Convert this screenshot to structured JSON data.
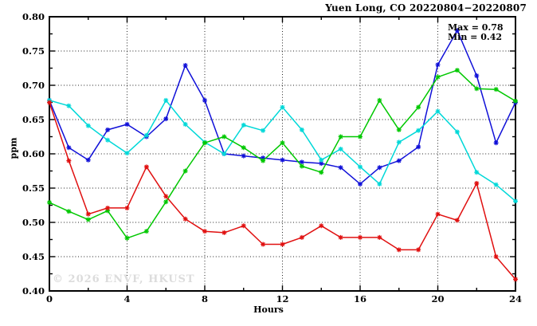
{
  "title": "Yuen Long, CO 20220804−20220807",
  "annotation": {
    "max_label": "Max = 0.78",
    "min_label": "Min = 0.42"
  },
  "watermark": "© 2026 ENVF, HKUST",
  "axis": {
    "xlabel": "Hours",
    "ylabel": "ppm"
  },
  "colors": {
    "blue": "#1010d8",
    "cyan": "#00d8d8",
    "green": "#00c800",
    "red": "#e01010"
  },
  "chart_data": {
    "type": "line",
    "title": "Yuen Long, CO 20220804−20220807",
    "xlabel": "Hours",
    "ylabel": "ppm",
    "xlim": [
      0,
      24
    ],
    "ylim": [
      0.4,
      0.8
    ],
    "grid": true,
    "legend": false,
    "x_ticks": [
      0,
      4,
      8,
      12,
      16,
      20,
      24
    ],
    "x_tick_labels": [
      "0",
      "4",
      "8",
      "12",
      "16",
      "20",
      "24"
    ],
    "x_minor_ticks": [
      2,
      6,
      10,
      14,
      18,
      22
    ],
    "y_ticks": [
      0.4,
      0.45,
      0.5,
      0.55,
      0.6,
      0.65,
      0.7,
      0.75,
      0.8
    ],
    "y_tick_labels": [
      "0.40",
      "0.45",
      "0.50",
      "0.55",
      "0.60",
      "0.65",
      "0.70",
      "0.75",
      "0.80"
    ],
    "y_minor_ticks": [
      0.425,
      0.475,
      0.525,
      0.575,
      0.625,
      0.675,
      0.725,
      0.775
    ],
    "x": [
      0,
      1,
      2,
      3,
      4,
      5,
      6,
      7,
      8,
      9,
      10,
      11,
      12,
      13,
      14,
      15,
      16,
      17,
      18,
      19,
      20,
      21,
      22,
      23,
      24
    ],
    "series": [
      {
        "name": "blue",
        "color": "#1010d8",
        "values": [
          0.678,
          0.609,
          0.591,
          0.635,
          0.643,
          0.625,
          0.651,
          0.729,
          0.678,
          0.6,
          0.597,
          0.594,
          0.591,
          0.588,
          0.586,
          0.58,
          0.556,
          0.58,
          0.59,
          0.61,
          0.73,
          0.78,
          0.714,
          0.616,
          0.675
        ]
      },
      {
        "name": "cyan",
        "color": "#00d8d8",
        "values": [
          0.678,
          0.67,
          0.641,
          0.62,
          0.601,
          0.627,
          0.678,
          0.643,
          0.617,
          0.6,
          0.642,
          0.634,
          0.668,
          0.635,
          0.591,
          0.607,
          0.581,
          0.556,
          0.617,
          0.634,
          0.662,
          0.632,
          0.573,
          0.555,
          0.531
        ]
      },
      {
        "name": "green",
        "color": "#00c800",
        "values": [
          0.529,
          0.516,
          0.504,
          0.517,
          0.477,
          0.487,
          0.53,
          0.575,
          0.616,
          0.625,
          0.609,
          0.59,
          0.616,
          0.582,
          0.573,
          0.625,
          0.625,
          0.678,
          0.635,
          0.668,
          0.712,
          0.722,
          0.695,
          0.694,
          0.677
        ]
      },
      {
        "name": "red",
        "color": "#e01010",
        "values": [
          0.675,
          0.59,
          0.512,
          0.521,
          0.521,
          0.581,
          0.538,
          0.505,
          0.487,
          0.485,
          0.495,
          0.468,
          0.468,
          0.478,
          0.495,
          0.478,
          0.478,
          0.478,
          0.46,
          0.46,
          0.512,
          0.503,
          0.557,
          0.45,
          0.417
        ]
      }
    ],
    "annotations": [
      "Max = 0.78",
      "Min = 0.42"
    ]
  }
}
